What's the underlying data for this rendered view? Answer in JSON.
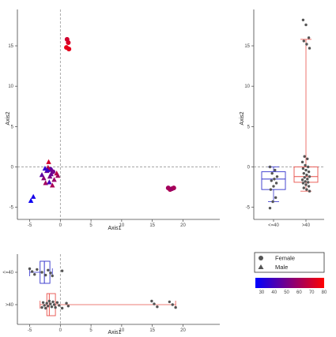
{
  "chart_data": [
    {
      "type": "scatter",
      "xlabel": "Axis1",
      "ylabel": "Axis2",
      "xlim": [
        -7,
        26
      ],
      "ylim": [
        -6.5,
        19.5
      ],
      "xticks": [
        -5,
        0,
        5,
        10,
        15,
        20
      ],
      "yticks": [
        -5,
        0,
        5,
        10,
        15
      ],
      "reference_lines": {
        "x": 0,
        "y": 0
      },
      "grid": false,
      "series": [
        {
          "name": "Female",
          "shape": "circle",
          "points": [
            [
              1.1,
              15.8,
              70
            ],
            [
              1.3,
              15.4,
              72
            ],
            [
              1.0,
              14.8,
              75
            ],
            [
              1.4,
              14.6,
              74
            ],
            [
              -1.6,
              -0.3,
              45
            ],
            [
              -1.2,
              -0.6,
              50
            ],
            [
              17.6,
              -2.6,
              60
            ],
            [
              17.9,
              -2.8,
              62
            ],
            [
              18.2,
              -2.7,
              58
            ],
            [
              18.5,
              -2.6,
              61
            ]
          ]
        },
        {
          "name": "Male",
          "shape": "triangle",
          "points": [
            [
              -4.8,
              -4.2,
              28
            ],
            [
              -4.4,
              -3.7,
              30
            ],
            [
              -3.0,
              -1.0,
              45
            ],
            [
              -2.7,
              -1.4,
              55
            ],
            [
              -2.4,
              -2.0,
              60
            ],
            [
              -2.2,
              -0.5,
              50
            ],
            [
              -2.0,
              -0.1,
              65
            ],
            [
              -1.9,
              0.6,
              70
            ],
            [
              -1.7,
              -1.2,
              52
            ],
            [
              -1.5,
              -0.9,
              48
            ],
            [
              -1.3,
              -2.3,
              62
            ],
            [
              -1.0,
              -1.6,
              58
            ],
            [
              -0.6,
              -0.8,
              65
            ],
            [
              -0.4,
              -1.1,
              60
            ],
            [
              -1.8,
              -1.9,
              40
            ],
            [
              -2.5,
              -0.2,
              35
            ],
            [
              -2.1,
              -0.4,
              38
            ]
          ]
        }
      ]
    },
    {
      "type": "box",
      "xlabel": "",
      "ylabel": "Axis2",
      "categories": [
        "<=40",
        ">40"
      ],
      "ylim": [
        -6.5,
        19.5
      ],
      "yticks": [
        -5,
        0,
        5,
        10,
        15
      ],
      "reference_lines": {
        "y": 0
      },
      "boxes": [
        {
          "category": "<=40",
          "whisker_low": -4.3,
          "q1": -2.8,
          "median": -1.5,
          "q3": -0.6,
          "whisker_high": 0.0,
          "color": "#3333cc",
          "points": [
            -5.1,
            -4.3,
            -3.8,
            -2.8,
            -2.4,
            -2.0,
            -1.7,
            -1.5,
            -1.2,
            -0.8,
            -0.4,
            0.0
          ]
        },
        {
          "category": ">40",
          "whisker_low": -3.0,
          "q1": -1.9,
          "median": -1.2,
          "q3": 0.0,
          "whisker_high": 15.8,
          "color": "#e8504a",
          "points": [
            18.2,
            17.6,
            16.0,
            15.6,
            15.2,
            14.7,
            1.3,
            1.0,
            0.6,
            0.2,
            0.0,
            -0.2,
            -0.4,
            -0.6,
            -0.8,
            -1.0,
            -1.2,
            -1.3,
            -1.5,
            -1.6,
            -1.8,
            -1.9,
            -2.0,
            -2.2,
            -2.4,
            -2.6,
            -2.8,
            -3.0
          ]
        }
      ]
    },
    {
      "type": "box",
      "orientation": "horizontal",
      "xlabel": "Axis1",
      "ylabel": "",
      "categories": [
        "<=40",
        ">40"
      ],
      "xlim": [
        -7,
        26
      ],
      "xticks": [
        -5,
        0,
        5,
        10,
        15,
        20
      ],
      "reference_lines": {
        "x": 0
      },
      "boxes": [
        {
          "category": "<=40",
          "whisker_low": -5.0,
          "q1": -3.3,
          "median": -2.6,
          "q3": -1.7,
          "whisker_high": -1.3,
          "color": "#3333cc",
          "points": [
            -5.0,
            -4.6,
            -4.2,
            -3.8,
            -3.0,
            -2.4,
            -2.0,
            -1.6,
            -1.3,
            0.3
          ]
        },
        {
          "category": ">40",
          "whisker_low": -3.3,
          "q1": -2.2,
          "median": -1.8,
          "q3": -0.8,
          "whisker_high": 18.8,
          "color": "#e8504a",
          "points": [
            -3.0,
            -2.8,
            -2.6,
            -2.4,
            -2.2,
            -2.0,
            -1.8,
            -1.6,
            -1.4,
            -1.2,
            -1.0,
            -0.8,
            -0.5,
            -0.2,
            0.3,
            1.0,
            1.3,
            14.9,
            15.3,
            15.8,
            17.8,
            18.3,
            18.8
          ]
        }
      ]
    },
    {
      "type": "legend",
      "shape_legend": [
        {
          "label": "Female",
          "shape": "circle"
        },
        {
          "label": "Male",
          "shape": "triangle"
        }
      ],
      "colorbar": {
        "ticks": [
          30,
          40,
          50,
          60,
          70,
          80
        ],
        "low_color": "#0000ff",
        "high_color": "#ff0000"
      }
    }
  ]
}
